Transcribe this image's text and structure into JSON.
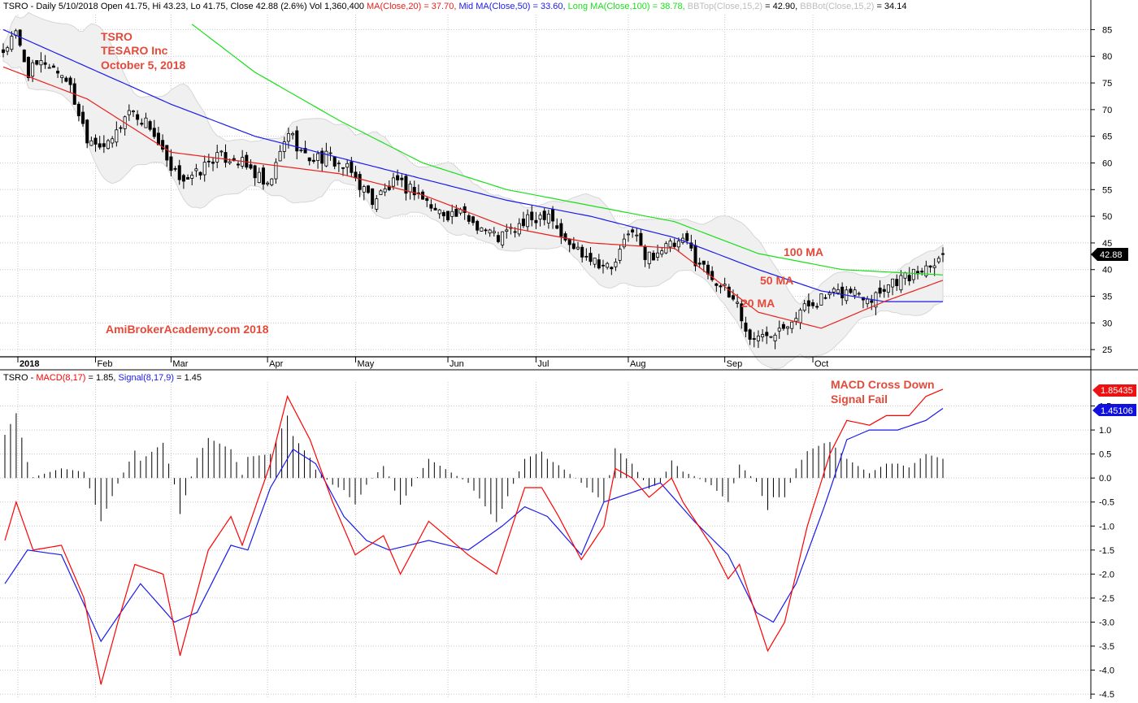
{
  "header": {
    "ticker_prefix": "TSRO - Daily 5/10/2018 Open 41.75, Hi 43.23, Lo 41.75, Close 42.88 (2.6%) Vol 1,360,400",
    "ma20": "MA(Close,20) = 37.70,",
    "ma50": "Mid MA(Close,50) = 33.60,",
    "ma100": "Long MA(Close,100) = 38.78,",
    "bbtop_name": "BBTop(Close,15,2)",
    "bbtop_val": "= 42.90,",
    "bbbot_name": "BBBot(Close,15,2)",
    "bbbot_val": "= 34.14"
  },
  "macd_header": {
    "prefix": "TSRO -",
    "macd": "MACD(8,17)",
    "macd_val": "= 1.85,",
    "signal": "Signal(8,17,9)",
    "signal_val": "= 1.45"
  },
  "annotations": {
    "company_line1": "TSRO",
    "company_line2": "TESARO Inc",
    "company_line3": "October 5, 2018",
    "watermark": "AmiBrokerAcademy.com  2018",
    "ma100_label": "100 MA",
    "ma50_label": "50 MA",
    "ma20_label": "20 MA",
    "macd_note1": "MACD Cross Down",
    "macd_note2": "Signal Fail"
  },
  "price_tag": "42.88",
  "macd_tag": "1.85435",
  "signal_tag": "1.45106",
  "colors": {
    "ma20": "#e8201c",
    "ma50": "#1a1aee",
    "ma100": "#18e018",
    "band_fill": "#f0f0f0",
    "annotation": "#e34a3a",
    "macd": "#ff0000",
    "signal": "#1a1aee",
    "grid": "#c8c8c8"
  },
  "chart_data": [
    {
      "type": "candlestick",
      "title": "TSRO - Daily",
      "x_months": [
        "2018",
        "Feb",
        "Mar",
        "Apr",
        "May",
        "Jun",
        "Jul",
        "Aug",
        "Sep",
        "Oct"
      ],
      "y_ticks": [
        25,
        30,
        35,
        40,
        45,
        50,
        55,
        60,
        65,
        70,
        75,
        80,
        85
      ],
      "ylim": [
        23.5,
        87.2
      ],
      "last_close": 42.88,
      "approx_close_path": [
        [
          0,
          81
        ],
        [
          3,
          84
        ],
        [
          6,
          77
        ],
        [
          10,
          79
        ],
        [
          15,
          76
        ],
        [
          20,
          65
        ],
        [
          25,
          63
        ],
        [
          30,
          70
        ],
        [
          35,
          67
        ],
        [
          40,
          58
        ],
        [
          45,
          57
        ],
        [
          50,
          61
        ],
        [
          55,
          61
        ],
        [
          60,
          58
        ],
        [
          63,
          55
        ],
        [
          68,
          66
        ],
        [
          72,
          61
        ],
        [
          78,
          61
        ],
        [
          83,
          58
        ],
        [
          88,
          53
        ],
        [
          93,
          56
        ],
        [
          98,
          55
        ],
        [
          103,
          51
        ],
        [
          110,
          50
        ],
        [
          118,
          46
        ],
        [
          125,
          49
        ],
        [
          130,
          51
        ],
        [
          134,
          45
        ],
        [
          139,
          43
        ],
        [
          145,
          40
        ],
        [
          150,
          48
        ],
        [
          153,
          42
        ],
        [
          157,
          44
        ],
        [
          163,
          45
        ],
        [
          165,
          42
        ],
        [
          170,
          38
        ],
        [
          173,
          35
        ],
        [
          175,
          34
        ],
        [
          177,
          28
        ],
        [
          180,
          27
        ],
        [
          184,
          29
        ],
        [
          188,
          31
        ],
        [
          193,
          34
        ],
        [
          197,
          35
        ],
        [
          202,
          36
        ],
        [
          207,
          35
        ],
        [
          212,
          38
        ],
        [
          217,
          39
        ],
        [
          222,
          42
        ],
        [
          224,
          43
        ]
      ],
      "series": [
        {
          "name": "MA(Close,20)",
          "points": [
            [
              0,
              78
            ],
            [
              20,
              72
            ],
            [
              40,
              62
            ],
            [
              60,
              60
            ],
            [
              80,
              58
            ],
            [
              100,
              54
            ],
            [
              120,
              48
            ],
            [
              140,
              45
            ],
            [
              160,
              44
            ],
            [
              180,
              32
            ],
            [
              195,
              29
            ],
            [
              210,
              34
            ],
            [
              224,
              38
            ]
          ]
        },
        {
          "name": "Mid MA(Close,50)",
          "points": [
            [
              0,
              85
            ],
            [
              20,
              78
            ],
            [
              40,
              71
            ],
            [
              60,
              65
            ],
            [
              80,
              61
            ],
            [
              100,
              57
            ],
            [
              120,
              53
            ],
            [
              140,
              50
            ],
            [
              160,
              46
            ],
            [
              180,
              40
            ],
            [
              195,
              36
            ],
            [
              210,
              34
            ],
            [
              224,
              34
            ]
          ]
        },
        {
          "name": "Long MA(Close,100)",
          "points": [
            [
              45,
              86
            ],
            [
              60,
              77
            ],
            [
              80,
              68
            ],
            [
              100,
              60
            ],
            [
              120,
              55
            ],
            [
              140,
              52
            ],
            [
              160,
              49
            ],
            [
              180,
              43
            ],
            [
              200,
              40
            ],
            [
              224,
              39
            ]
          ]
        }
      ]
    },
    {
      "type": "line",
      "title": "MACD(8,17), Signal(8,17,9)",
      "y_ticks": [
        -4.5,
        -4.0,
        -3.5,
        -3.0,
        -2.5,
        -2.0,
        -1.5,
        -1.0,
        -0.5,
        0.0,
        0.5,
        1.0,
        1.5
      ],
      "ylim": [
        -4.6,
        2.0
      ],
      "series": [
        {
          "name": "MACD(8,17)",
          "points": [
            [
              0,
              -1.3
            ],
            [
              2,
              -0.5
            ],
            [
              5,
              -1.5
            ],
            [
              10,
              -1.4
            ],
            [
              14,
              -2.5
            ],
            [
              17,
              -4.3
            ],
            [
              20,
              -3.0
            ],
            [
              23,
              -1.8
            ],
            [
              28,
              -2.0
            ],
            [
              31,
              -3.7
            ],
            [
              36,
              -1.5
            ],
            [
              40,
              -0.8
            ],
            [
              42,
              -1.4
            ],
            [
              47,
              0.3
            ],
            [
              50,
              1.7
            ],
            [
              54,
              0.8
            ],
            [
              58,
              -0.5
            ],
            [
              62,
              -1.6
            ],
            [
              67,
              -1.2
            ],
            [
              70,
              -2.0
            ],
            [
              75,
              -0.9
            ],
            [
              82,
              -1.6
            ],
            [
              87,
              -2.0
            ],
            [
              92,
              -0.2
            ],
            [
              95,
              -0.2
            ],
            [
              98,
              -0.8
            ],
            [
              102,
              -1.7
            ],
            [
              106,
              -1.0
            ],
            [
              108,
              0.2
            ],
            [
              111,
              0.0
            ],
            [
              114,
              -0.4
            ],
            [
              118,
              0.0
            ],
            [
              120,
              -0.5
            ],
            [
              125,
              -1.4
            ],
            [
              128,
              -2.1
            ],
            [
              130,
              -1.8
            ],
            [
              135,
              -3.6
            ],
            [
              138,
              -3.0
            ],
            [
              142,
              -1.0
            ],
            [
              146,
              0.5
            ],
            [
              149,
              1.2
            ],
            [
              153,
              1.1
            ],
            [
              156,
              1.3
            ],
            [
              160,
              1.3
            ],
            [
              163,
              1.7
            ],
            [
              166,
              1.85
            ]
          ]
        },
        {
          "name": "Signal(8,17,9)",
          "points": [
            [
              0,
              -2.2
            ],
            [
              4,
              -1.5
            ],
            [
              10,
              -1.6
            ],
            [
              17,
              -3.4
            ],
            [
              24,
              -2.2
            ],
            [
              30,
              -3.0
            ],
            [
              34,
              -2.8
            ],
            [
              40,
              -1.4
            ],
            [
              43,
              -1.5
            ],
            [
              47,
              -0.2
            ],
            [
              51,
              0.6
            ],
            [
              55,
              0.3
            ],
            [
              60,
              -0.8
            ],
            [
              64,
              -1.3
            ],
            [
              68,
              -1.5
            ],
            [
              75,
              -1.3
            ],
            [
              82,
              -1.5
            ],
            [
              88,
              -1.0
            ],
            [
              92,
              -0.6
            ],
            [
              96,
              -0.8
            ],
            [
              102,
              -1.6
            ],
            [
              106,
              -0.5
            ],
            [
              111,
              -0.3
            ],
            [
              116,
              -0.1
            ],
            [
              122,
              -0.9
            ],
            [
              128,
              -1.6
            ],
            [
              133,
              -2.8
            ],
            [
              136,
              -3.0
            ],
            [
              140,
              -2.2
            ],
            [
              145,
              -0.6
            ],
            [
              149,
              0.8
            ],
            [
              153,
              1.0
            ],
            [
              158,
              1.0
            ],
            [
              163,
              1.2
            ],
            [
              166,
              1.45
            ]
          ]
        }
      ]
    }
  ]
}
